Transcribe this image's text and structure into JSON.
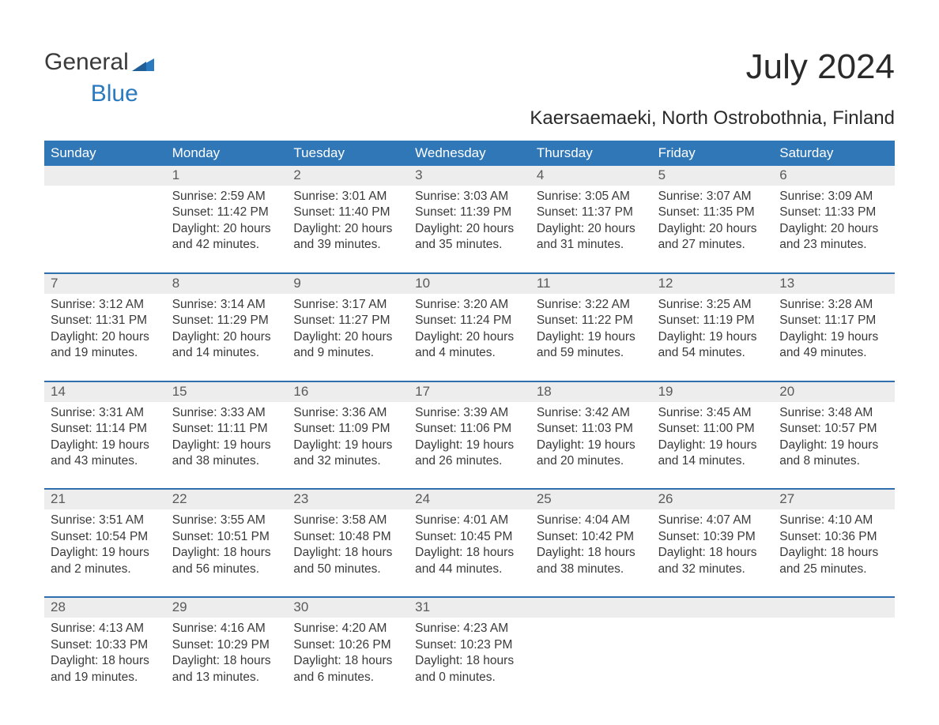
{
  "brand": {
    "part1": "General",
    "part2": "Blue"
  },
  "title": "July 2024",
  "subtitle": "Kaersaemaeki, North Ostrobothnia, Finland",
  "colors": {
    "header_bg": "#3077b8",
    "header_text": "#ffffff",
    "week_border": "#2f6fad",
    "daynum_bg": "#ededed",
    "body_text": "#3a3a3a",
    "logo_blue": "#2a7ac0"
  },
  "layout": {
    "cols": 7,
    "rows": 5
  },
  "dow": [
    "Sunday",
    "Monday",
    "Tuesday",
    "Wednesday",
    "Thursday",
    "Friday",
    "Saturday"
  ],
  "weeks": [
    [
      {
        "n": "",
        "sunrise": "",
        "sunset": "",
        "daylight": ""
      },
      {
        "n": "1",
        "sunrise": "Sunrise: 2:59 AM",
        "sunset": "Sunset: 11:42 PM",
        "daylight": "Daylight: 20 hours and 42 minutes."
      },
      {
        "n": "2",
        "sunrise": "Sunrise: 3:01 AM",
        "sunset": "Sunset: 11:40 PM",
        "daylight": "Daylight: 20 hours and 39 minutes."
      },
      {
        "n": "3",
        "sunrise": "Sunrise: 3:03 AM",
        "sunset": "Sunset: 11:39 PM",
        "daylight": "Daylight: 20 hours and 35 minutes."
      },
      {
        "n": "4",
        "sunrise": "Sunrise: 3:05 AM",
        "sunset": "Sunset: 11:37 PM",
        "daylight": "Daylight: 20 hours and 31 minutes."
      },
      {
        "n": "5",
        "sunrise": "Sunrise: 3:07 AM",
        "sunset": "Sunset: 11:35 PM",
        "daylight": "Daylight: 20 hours and 27 minutes."
      },
      {
        "n": "6",
        "sunrise": "Sunrise: 3:09 AM",
        "sunset": "Sunset: 11:33 PM",
        "daylight": "Daylight: 20 hours and 23 minutes."
      }
    ],
    [
      {
        "n": "7",
        "sunrise": "Sunrise: 3:12 AM",
        "sunset": "Sunset: 11:31 PM",
        "daylight": "Daylight: 20 hours and 19 minutes."
      },
      {
        "n": "8",
        "sunrise": "Sunrise: 3:14 AM",
        "sunset": "Sunset: 11:29 PM",
        "daylight": "Daylight: 20 hours and 14 minutes."
      },
      {
        "n": "9",
        "sunrise": "Sunrise: 3:17 AM",
        "sunset": "Sunset: 11:27 PM",
        "daylight": "Daylight: 20 hours and 9 minutes."
      },
      {
        "n": "10",
        "sunrise": "Sunrise: 3:20 AM",
        "sunset": "Sunset: 11:24 PM",
        "daylight": "Daylight: 20 hours and 4 minutes."
      },
      {
        "n": "11",
        "sunrise": "Sunrise: 3:22 AM",
        "sunset": "Sunset: 11:22 PM",
        "daylight": "Daylight: 19 hours and 59 minutes."
      },
      {
        "n": "12",
        "sunrise": "Sunrise: 3:25 AM",
        "sunset": "Sunset: 11:19 PM",
        "daylight": "Daylight: 19 hours and 54 minutes."
      },
      {
        "n": "13",
        "sunrise": "Sunrise: 3:28 AM",
        "sunset": "Sunset: 11:17 PM",
        "daylight": "Daylight: 19 hours and 49 minutes."
      }
    ],
    [
      {
        "n": "14",
        "sunrise": "Sunrise: 3:31 AM",
        "sunset": "Sunset: 11:14 PM",
        "daylight": "Daylight: 19 hours and 43 minutes."
      },
      {
        "n": "15",
        "sunrise": "Sunrise: 3:33 AM",
        "sunset": "Sunset: 11:11 PM",
        "daylight": "Daylight: 19 hours and 38 minutes."
      },
      {
        "n": "16",
        "sunrise": "Sunrise: 3:36 AM",
        "sunset": "Sunset: 11:09 PM",
        "daylight": "Daylight: 19 hours and 32 minutes."
      },
      {
        "n": "17",
        "sunrise": "Sunrise: 3:39 AM",
        "sunset": "Sunset: 11:06 PM",
        "daylight": "Daylight: 19 hours and 26 minutes."
      },
      {
        "n": "18",
        "sunrise": "Sunrise: 3:42 AM",
        "sunset": "Sunset: 11:03 PM",
        "daylight": "Daylight: 19 hours and 20 minutes."
      },
      {
        "n": "19",
        "sunrise": "Sunrise: 3:45 AM",
        "sunset": "Sunset: 11:00 PM",
        "daylight": "Daylight: 19 hours and 14 minutes."
      },
      {
        "n": "20",
        "sunrise": "Sunrise: 3:48 AM",
        "sunset": "Sunset: 10:57 PM",
        "daylight": "Daylight: 19 hours and 8 minutes."
      }
    ],
    [
      {
        "n": "21",
        "sunrise": "Sunrise: 3:51 AM",
        "sunset": "Sunset: 10:54 PM",
        "daylight": "Daylight: 19 hours and 2 minutes."
      },
      {
        "n": "22",
        "sunrise": "Sunrise: 3:55 AM",
        "sunset": "Sunset: 10:51 PM",
        "daylight": "Daylight: 18 hours and 56 minutes."
      },
      {
        "n": "23",
        "sunrise": "Sunrise: 3:58 AM",
        "sunset": "Sunset: 10:48 PM",
        "daylight": "Daylight: 18 hours and 50 minutes."
      },
      {
        "n": "24",
        "sunrise": "Sunrise: 4:01 AM",
        "sunset": "Sunset: 10:45 PM",
        "daylight": "Daylight: 18 hours and 44 minutes."
      },
      {
        "n": "25",
        "sunrise": "Sunrise: 4:04 AM",
        "sunset": "Sunset: 10:42 PM",
        "daylight": "Daylight: 18 hours and 38 minutes."
      },
      {
        "n": "26",
        "sunrise": "Sunrise: 4:07 AM",
        "sunset": "Sunset: 10:39 PM",
        "daylight": "Daylight: 18 hours and 32 minutes."
      },
      {
        "n": "27",
        "sunrise": "Sunrise: 4:10 AM",
        "sunset": "Sunset: 10:36 PM",
        "daylight": "Daylight: 18 hours and 25 minutes."
      }
    ],
    [
      {
        "n": "28",
        "sunrise": "Sunrise: 4:13 AM",
        "sunset": "Sunset: 10:33 PM",
        "daylight": "Daylight: 18 hours and 19 minutes."
      },
      {
        "n": "29",
        "sunrise": "Sunrise: 4:16 AM",
        "sunset": "Sunset: 10:29 PM",
        "daylight": "Daylight: 18 hours and 13 minutes."
      },
      {
        "n": "30",
        "sunrise": "Sunrise: 4:20 AM",
        "sunset": "Sunset: 10:26 PM",
        "daylight": "Daylight: 18 hours and 6 minutes."
      },
      {
        "n": "31",
        "sunrise": "Sunrise: 4:23 AM",
        "sunset": "Sunset: 10:23 PM",
        "daylight": "Daylight: 18 hours and 0 minutes."
      },
      {
        "n": "",
        "sunrise": "",
        "sunset": "",
        "daylight": ""
      },
      {
        "n": "",
        "sunrise": "",
        "sunset": "",
        "daylight": ""
      },
      {
        "n": "",
        "sunrise": "",
        "sunset": "",
        "daylight": ""
      }
    ]
  ]
}
